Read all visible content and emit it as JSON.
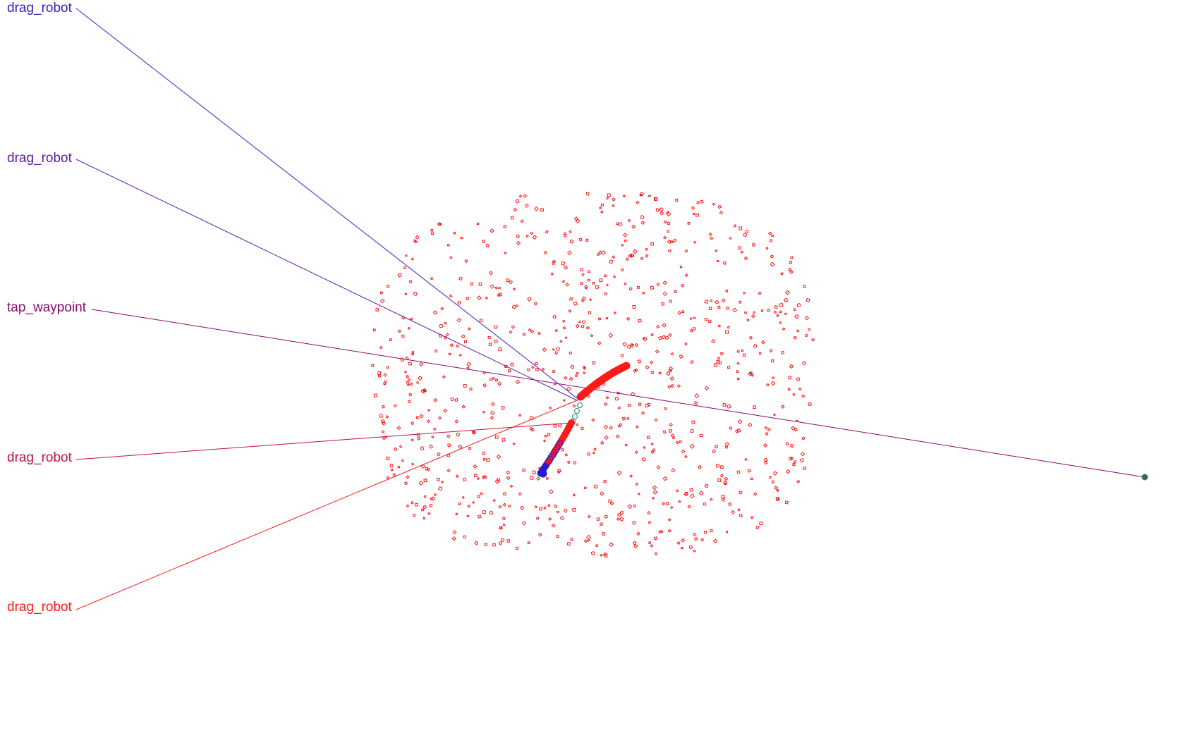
{
  "actions": [
    {
      "label": "drag_robot",
      "color": "#3a1acd"
    },
    {
      "label": "drag_robot",
      "color": "#5a1aa6"
    },
    {
      "label": "tap_waypoint",
      "color": "#8a0a6a"
    },
    {
      "label": "drag_robot",
      "color": "#c2103e"
    },
    {
      "label": "drag_robot",
      "color": "#ff1a1a"
    }
  ],
  "colors": {
    "field_marker": "#ff0000",
    "trail_head": "#ff1a1a",
    "trail_tail": "#2a1acd",
    "waypoint_ring": "#1a8a6a",
    "target_dot": "#555555"
  },
  "icons": {
    "field_marker": "square-outline-marker",
    "trail_point": "circle-marker",
    "target": "target-dot-icon"
  }
}
